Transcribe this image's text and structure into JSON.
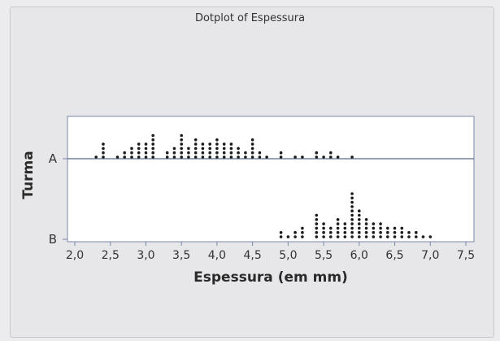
{
  "chart_data": {
    "type": "dotplot",
    "title": "Dotplot of Espessura",
    "xlabel": "Espessura (em mm)",
    "ylabel": "Turma",
    "xlim": [
      2.0,
      7.5
    ],
    "xticks": [
      2.0,
      2.5,
      3.0,
      3.5,
      4.0,
      4.5,
      5.0,
      5.5,
      6.0,
      6.5,
      7.0,
      7.5
    ],
    "xtick_labels": [
      "2,0",
      "2,5",
      "3,0",
      "3,5",
      "4,0",
      "4,5",
      "5,0",
      "5,5",
      "6,0",
      "6,5",
      "7,0",
      "7,5"
    ],
    "categories": [
      "A",
      "B"
    ],
    "series": [
      {
        "name": "A",
        "points": [
          [
            2.3,
            1
          ],
          [
            2.4,
            4
          ],
          [
            2.6,
            1
          ],
          [
            2.7,
            2
          ],
          [
            2.8,
            3
          ],
          [
            2.9,
            4
          ],
          [
            3.0,
            4
          ],
          [
            3.1,
            6
          ],
          [
            3.3,
            2
          ],
          [
            3.4,
            3
          ],
          [
            3.5,
            6
          ],
          [
            3.6,
            3
          ],
          [
            3.7,
            5
          ],
          [
            3.8,
            4
          ],
          [
            3.9,
            4
          ],
          [
            4.0,
            5
          ],
          [
            4.1,
            4
          ],
          [
            4.2,
            4
          ],
          [
            4.3,
            3
          ],
          [
            4.4,
            2
          ],
          [
            4.5,
            5
          ],
          [
            4.6,
            2
          ],
          [
            4.7,
            1
          ],
          [
            4.9,
            2
          ],
          [
            5.1,
            1
          ],
          [
            5.2,
            1
          ],
          [
            5.4,
            2
          ],
          [
            5.5,
            1
          ],
          [
            5.6,
            2
          ],
          [
            5.7,
            1
          ],
          [
            5.9,
            1
          ]
        ]
      },
      {
        "name": "B",
        "points": [
          [
            4.9,
            2
          ],
          [
            5.0,
            1
          ],
          [
            5.1,
            2
          ],
          [
            5.2,
            3
          ],
          [
            5.4,
            6
          ],
          [
            5.5,
            4
          ],
          [
            5.6,
            3
          ],
          [
            5.7,
            5
          ],
          [
            5.8,
            4
          ],
          [
            5.9,
            11
          ],
          [
            6.0,
            7
          ],
          [
            6.1,
            5
          ],
          [
            6.2,
            4
          ],
          [
            6.3,
            4
          ],
          [
            6.4,
            3
          ],
          [
            6.5,
            3
          ],
          [
            6.6,
            3
          ],
          [
            6.7,
            2
          ],
          [
            6.8,
            2
          ],
          [
            6.9,
            1
          ],
          [
            7.0,
            1
          ]
        ]
      }
    ],
    "grid": false,
    "colors": {
      "dot": "#1a1a1a",
      "axis": "#7a87a6"
    }
  }
}
